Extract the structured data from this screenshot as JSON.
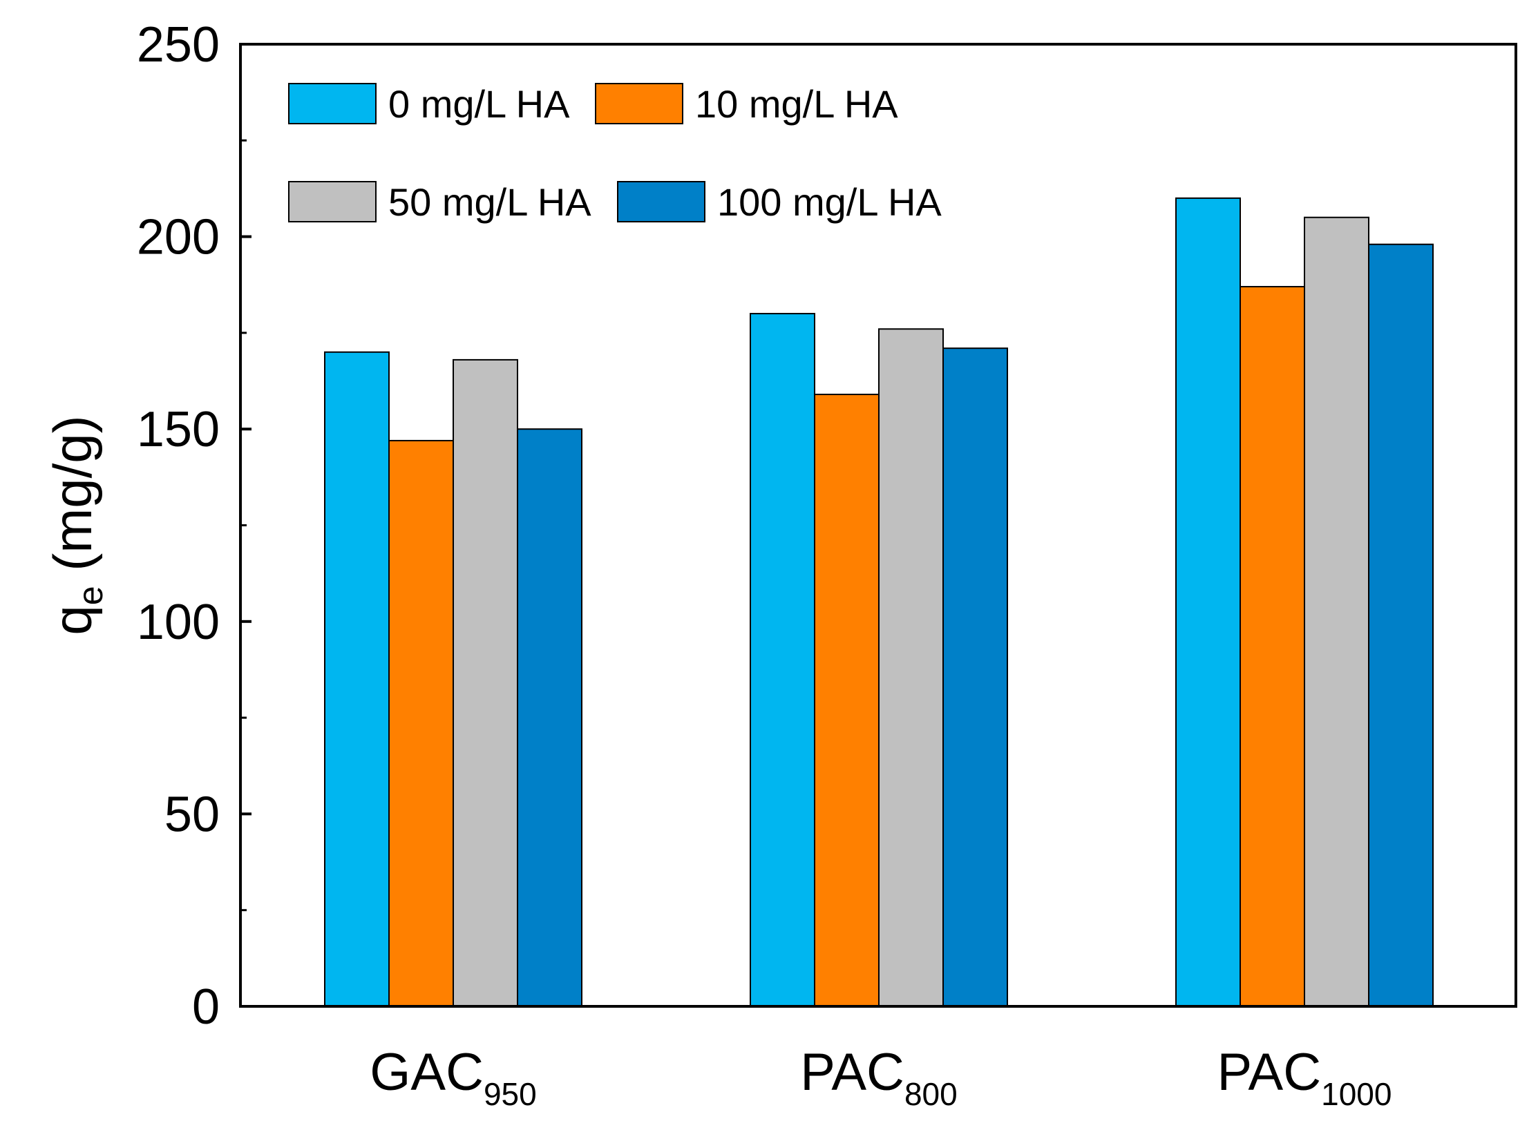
{
  "chart_data": {
    "type": "bar",
    "title": "",
    "xlabel": "",
    "ylabel": {
      "symbol": "q",
      "subscript": "e",
      "unit": "(mg/g)"
    },
    "ylim": [
      0,
      250
    ],
    "yticks": [
      0,
      50,
      100,
      150,
      200,
      250
    ],
    "minor_ticks": [
      25,
      75,
      125,
      175,
      225
    ],
    "grid": false,
    "legend_position": "top-left",
    "categories": [
      {
        "base": "GAC",
        "subscript": "950"
      },
      {
        "base": "PAC",
        "subscript": "800"
      },
      {
        "base": "PAC",
        "subscript": "1000"
      }
    ],
    "series": [
      {
        "name": "0 mg/L HA",
        "color": "#00B6F0",
        "values": [
          170,
          180,
          210
        ]
      },
      {
        "name": "10 mg/L HA",
        "color": "#FF8000",
        "values": [
          147,
          159,
          187
        ]
      },
      {
        "name": "50 mg/L HA",
        "color": "#C0C0C0",
        "values": [
          168,
          176,
          205
        ]
      },
      {
        "name": "100 mg/L HA",
        "color": "#0080C8",
        "values": [
          150,
          171,
          198
        ]
      }
    ]
  }
}
